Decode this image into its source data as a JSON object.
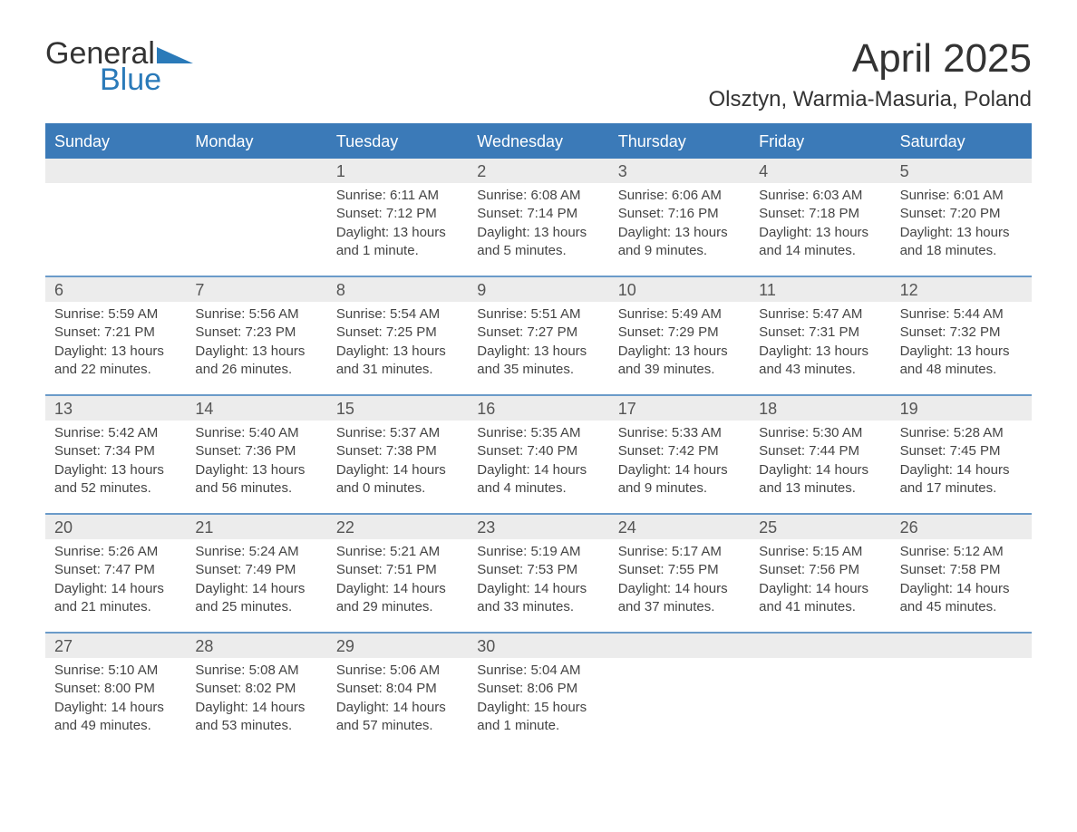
{
  "brand": {
    "part1": "General",
    "part2": "Blue",
    "accent_color": "#2a7ab9"
  },
  "title": "April 2025",
  "location": "Olsztyn, Warmia-Masuria, Poland",
  "header_bg": "#3b7ab8",
  "daynum_bg": "#ececec",
  "week_border": "#6b9bc9",
  "weekdays": [
    "Sunday",
    "Monday",
    "Tuesday",
    "Wednesday",
    "Thursday",
    "Friday",
    "Saturday"
  ],
  "weeks": [
    {
      "nums": [
        "",
        "",
        "1",
        "2",
        "3",
        "4",
        "5"
      ],
      "cells": [
        "",
        "",
        "Sunrise: 6:11 AM\nSunset: 7:12 PM\nDaylight: 13 hours and 1 minute.",
        "Sunrise: 6:08 AM\nSunset: 7:14 PM\nDaylight: 13 hours and 5 minutes.",
        "Sunrise: 6:06 AM\nSunset: 7:16 PM\nDaylight: 13 hours and 9 minutes.",
        "Sunrise: 6:03 AM\nSunset: 7:18 PM\nDaylight: 13 hours and 14 minutes.",
        "Sunrise: 6:01 AM\nSunset: 7:20 PM\nDaylight: 13 hours and 18 minutes."
      ]
    },
    {
      "nums": [
        "6",
        "7",
        "8",
        "9",
        "10",
        "11",
        "12"
      ],
      "cells": [
        "Sunrise: 5:59 AM\nSunset: 7:21 PM\nDaylight: 13 hours and 22 minutes.",
        "Sunrise: 5:56 AM\nSunset: 7:23 PM\nDaylight: 13 hours and 26 minutes.",
        "Sunrise: 5:54 AM\nSunset: 7:25 PM\nDaylight: 13 hours and 31 minutes.",
        "Sunrise: 5:51 AM\nSunset: 7:27 PM\nDaylight: 13 hours and 35 minutes.",
        "Sunrise: 5:49 AM\nSunset: 7:29 PM\nDaylight: 13 hours and 39 minutes.",
        "Sunrise: 5:47 AM\nSunset: 7:31 PM\nDaylight: 13 hours and 43 minutes.",
        "Sunrise: 5:44 AM\nSunset: 7:32 PM\nDaylight: 13 hours and 48 minutes."
      ]
    },
    {
      "nums": [
        "13",
        "14",
        "15",
        "16",
        "17",
        "18",
        "19"
      ],
      "cells": [
        "Sunrise: 5:42 AM\nSunset: 7:34 PM\nDaylight: 13 hours and 52 minutes.",
        "Sunrise: 5:40 AM\nSunset: 7:36 PM\nDaylight: 13 hours and 56 minutes.",
        "Sunrise: 5:37 AM\nSunset: 7:38 PM\nDaylight: 14 hours and 0 minutes.",
        "Sunrise: 5:35 AM\nSunset: 7:40 PM\nDaylight: 14 hours and 4 minutes.",
        "Sunrise: 5:33 AM\nSunset: 7:42 PM\nDaylight: 14 hours and 9 minutes.",
        "Sunrise: 5:30 AM\nSunset: 7:44 PM\nDaylight: 14 hours and 13 minutes.",
        "Sunrise: 5:28 AM\nSunset: 7:45 PM\nDaylight: 14 hours and 17 minutes."
      ]
    },
    {
      "nums": [
        "20",
        "21",
        "22",
        "23",
        "24",
        "25",
        "26"
      ],
      "cells": [
        "Sunrise: 5:26 AM\nSunset: 7:47 PM\nDaylight: 14 hours and 21 minutes.",
        "Sunrise: 5:24 AM\nSunset: 7:49 PM\nDaylight: 14 hours and 25 minutes.",
        "Sunrise: 5:21 AM\nSunset: 7:51 PM\nDaylight: 14 hours and 29 minutes.",
        "Sunrise: 5:19 AM\nSunset: 7:53 PM\nDaylight: 14 hours and 33 minutes.",
        "Sunrise: 5:17 AM\nSunset: 7:55 PM\nDaylight: 14 hours and 37 minutes.",
        "Sunrise: 5:15 AM\nSunset: 7:56 PM\nDaylight: 14 hours and 41 minutes.",
        "Sunrise: 5:12 AM\nSunset: 7:58 PM\nDaylight: 14 hours and 45 minutes."
      ]
    },
    {
      "nums": [
        "27",
        "28",
        "29",
        "30",
        "",
        "",
        ""
      ],
      "cells": [
        "Sunrise: 5:10 AM\nSunset: 8:00 PM\nDaylight: 14 hours and 49 minutes.",
        "Sunrise: 5:08 AM\nSunset: 8:02 PM\nDaylight: 14 hours and 53 minutes.",
        "Sunrise: 5:06 AM\nSunset: 8:04 PM\nDaylight: 14 hours and 57 minutes.",
        "Sunrise: 5:04 AM\nSunset: 8:06 PM\nDaylight: 15 hours and 1 minute.",
        "",
        "",
        ""
      ]
    }
  ]
}
